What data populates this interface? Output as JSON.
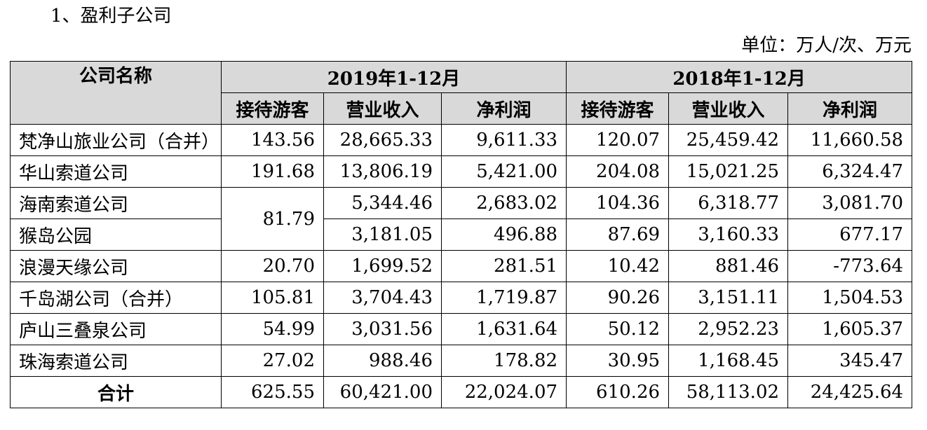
{
  "section_title": "1、盈利子公司",
  "unit_note": "单位：万人/次、万元",
  "table": {
    "col_company": "公司名称",
    "periods": [
      "2019年1-12月",
      "2018年1-12月"
    ],
    "subcols": [
      "接待游客",
      "营业收入",
      "净利润"
    ],
    "rows": [
      {
        "name": "梵净山旅业公司（合并）",
        "v2019": [
          "143.56",
          "28,665.33",
          "9,611.33"
        ],
        "v2018": [
          "120.07",
          "25,459.42",
          "11,660.58"
        ]
      },
      {
        "name": "华山索道公司",
        "v2019": [
          "191.68",
          "13,806.19",
          "5,421.00"
        ],
        "v2018": [
          "204.08",
          "15,021.25",
          "6,324.47"
        ]
      },
      {
        "name": "海南索道公司",
        "v2019": [
          "81.79",
          "5,344.46",
          "2,683.02"
        ],
        "v2018": [
          "104.36",
          "6,318.77",
          "3,081.70"
        ]
      },
      {
        "name": "猴岛公园",
        "v2019": [
          "",
          "3,181.05",
          "496.88"
        ],
        "v2018": [
          "87.69",
          "3,160.33",
          "677.17"
        ]
      },
      {
        "name": "浪漫天缘公司",
        "v2019": [
          "20.70",
          "1,699.52",
          "281.51"
        ],
        "v2018": [
          "10.42",
          "881.46",
          "-773.64"
        ]
      },
      {
        "name": "千岛湖公司（合并）",
        "v2019": [
          "105.81",
          "3,704.43",
          "1,719.87"
        ],
        "v2018": [
          "90.26",
          "3,151.11",
          "1,504.53"
        ]
      },
      {
        "name": "庐山三叠泉公司",
        "v2019": [
          "54.99",
          "3,031.56",
          "1,631.64"
        ],
        "v2018": [
          "50.12",
          "2,952.23",
          "1,605.37"
        ]
      },
      {
        "name": "珠海索道公司",
        "v2019": [
          "27.02",
          "988.46",
          "178.82"
        ],
        "v2018": [
          "30.95",
          "1,168.45",
          "345.47"
        ]
      }
    ],
    "total": {
      "name": "合计",
      "v2019": [
        "625.55",
        "60,421.00",
        "22,024.07"
      ],
      "v2018": [
        "610.26",
        "58,113.02",
        "24,425.64"
      ]
    }
  }
}
